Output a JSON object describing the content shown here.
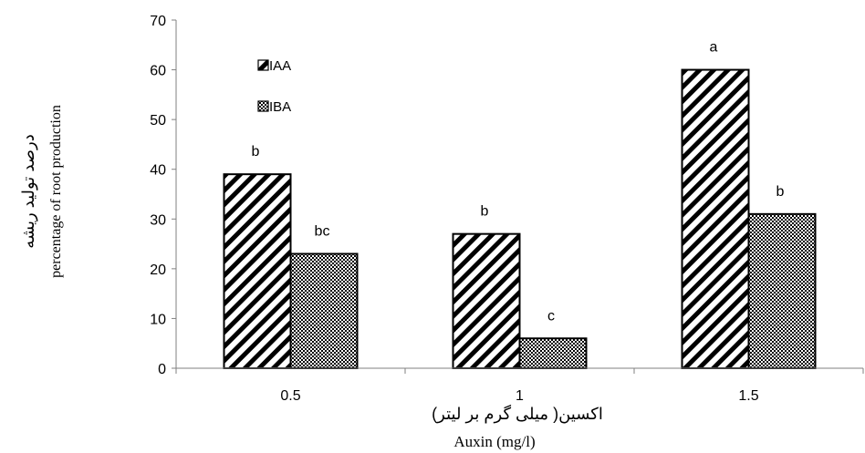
{
  "chart_data": {
    "type": "bar",
    "categories": [
      "0.5",
      "1",
      "1.5"
    ],
    "series": [
      {
        "name": "IAA",
        "values": [
          39,
          27,
          60
        ],
        "labels": [
          "b",
          "b",
          "a"
        ],
        "pattern": "diagonal-stripes"
      },
      {
        "name": "IBA",
        "values": [
          23,
          6,
          31
        ],
        "labels": [
          "bc",
          "c",
          "b"
        ],
        "pattern": "crosshatch-dots"
      }
    ],
    "ylim": [
      0,
      70
    ],
    "yticks": [
      0,
      10,
      20,
      30,
      40,
      50,
      60,
      70
    ],
    "ylabel_fa": "درصد تولید ریشه",
    "ylabel_en": "percentage of root production",
    "xlabel_fa": "اکسین( میلی گرم بر لیتر)",
    "xlabel_en": "Auxin (mg/l)",
    "grid": false,
    "legend_position": "top-left",
    "colors": {
      "bar_stroke": "#000000",
      "bar_fill": "#ffffff",
      "axis": "#808080",
      "text": "#000000"
    }
  }
}
